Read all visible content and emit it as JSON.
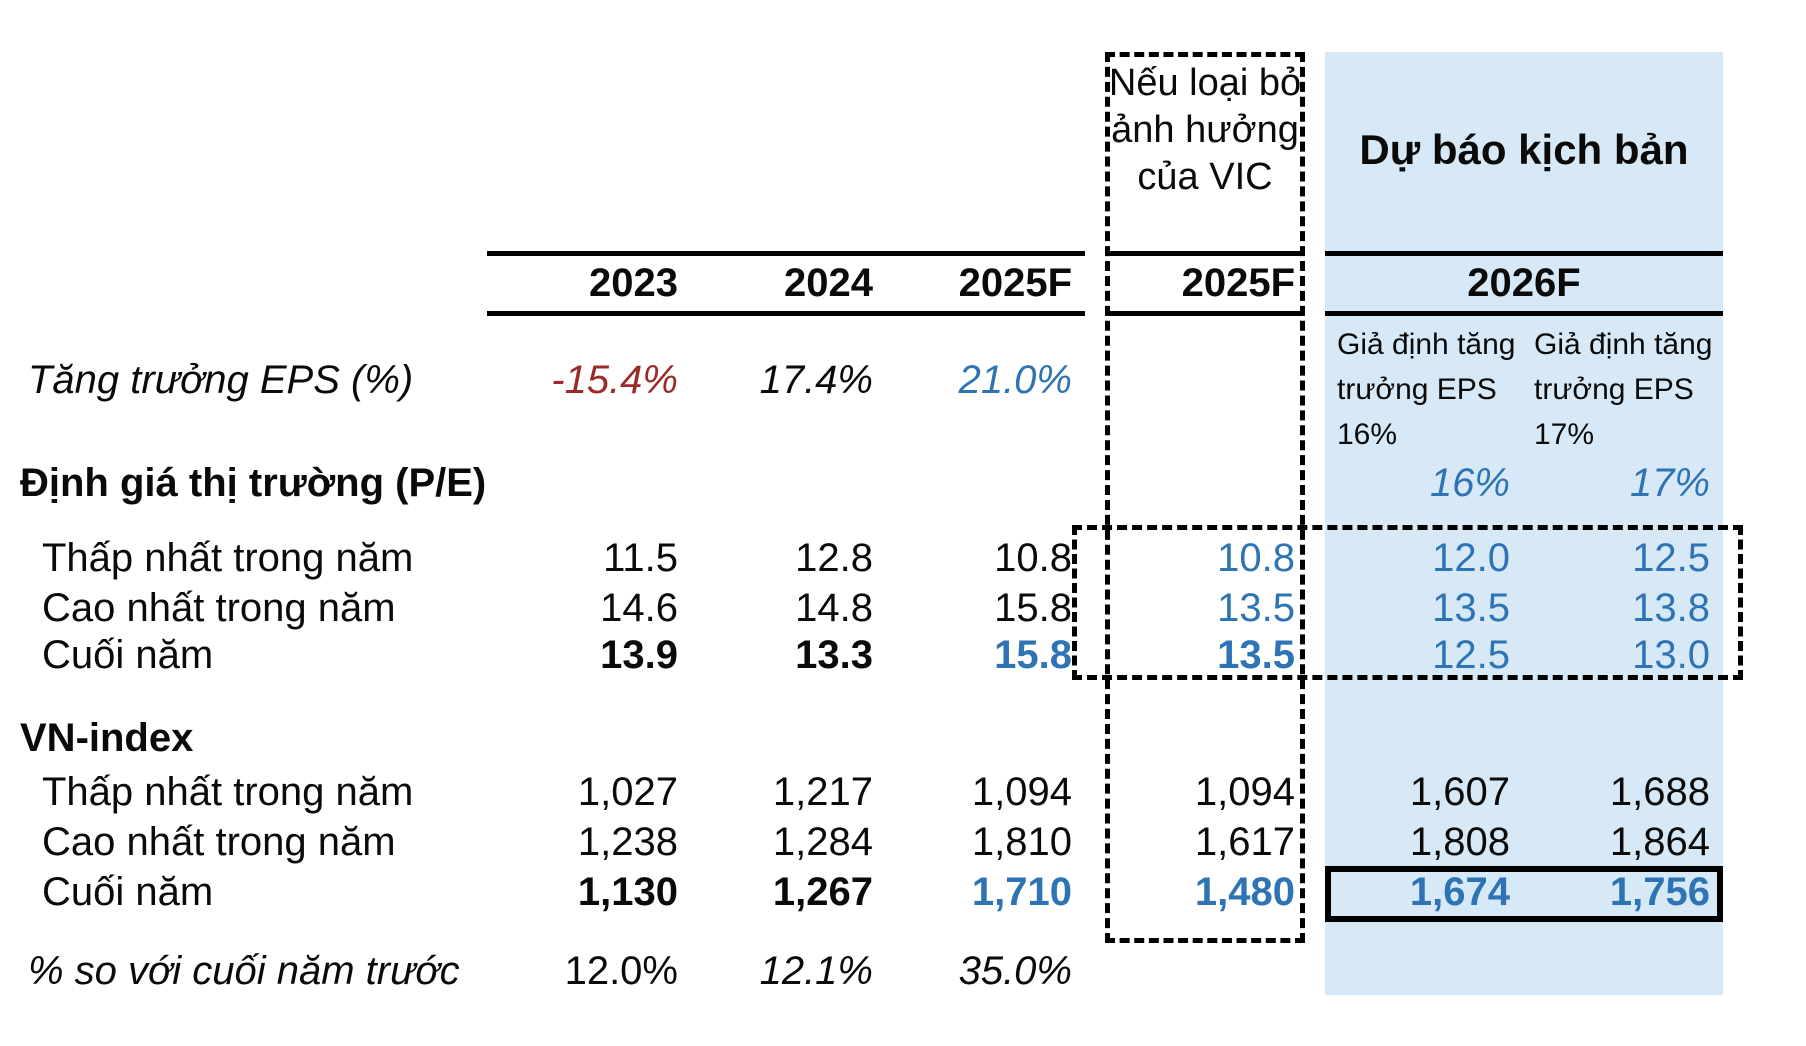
{
  "meta": {
    "colors": {
      "accent_blue_text": "#2E74B5",
      "negative_red_text": "#9C2B28",
      "scenario_highlight_bg": "#D7E9F7",
      "line_black": "#000000"
    }
  },
  "table": {
    "columns": {
      "y2023": "2023",
      "y2024": "2024",
      "y2025f": "2025F"
    },
    "vic": {
      "note": "Nếu loại bỏ ảnh hưởng của VIC",
      "subheader": "2025F"
    },
    "scenario": {
      "title": "Dự báo kịch bản",
      "year": "2026F",
      "assumption_16": "Giả định tăng trưởng EPS 16%",
      "assumption_17": "Giả định tăng trưởng EPS 17%"
    },
    "rows": {
      "eps_growth": {
        "label": "Tăng trưởng EPS (%)",
        "v2023": "-15.4%",
        "v2024": "17.4%",
        "v2025": "21.0%"
      },
      "pe_header": {
        "label": "Định giá thị trường (P/E)",
        "s16": "16%",
        "s17": "17%"
      },
      "pe_low": {
        "label": "Thấp nhất trong năm",
        "v2023": "11.5",
        "v2024": "12.8",
        "v2025": "10.8",
        "vic": "10.8",
        "s16": "12.0",
        "s17": "12.5"
      },
      "pe_high": {
        "label": "Cao nhất trong năm",
        "v2023": "14.6",
        "v2024": "14.8",
        "v2025": "15.8",
        "vic": "13.5",
        "s16": "13.5",
        "s17": "13.8"
      },
      "pe_close": {
        "label": "Cuối năm",
        "v2023": "13.9",
        "v2024": "13.3",
        "v2025": "15.8",
        "vic": "13.5",
        "s16": "12.5",
        "s17": "13.0"
      },
      "vn_header": {
        "label": "VN-index"
      },
      "vn_low": {
        "label": "Thấp nhất trong năm",
        "v2023": "1,027",
        "v2024": "1,217",
        "v2025": "1,094",
        "vic": "1,094",
        "s16": "1,607",
        "s17": "1,688"
      },
      "vn_high": {
        "label": "Cao nhất trong năm",
        "v2023": "1,238",
        "v2024": "1,284",
        "v2025": "1,810",
        "vic": "1,617",
        "s16": "1,808",
        "s17": "1,864"
      },
      "vn_close": {
        "label": "Cuối năm",
        "v2023": "1,130",
        "v2024": "1,267",
        "v2025": "1,710",
        "vic": "1,480",
        "s16": "1,674",
        "s17": "1,756"
      },
      "pct_change": {
        "label": "% so với cuối năm trước",
        "v2023": "12.0%",
        "v2024": "12.1%",
        "v2025": "35.0%"
      }
    }
  }
}
